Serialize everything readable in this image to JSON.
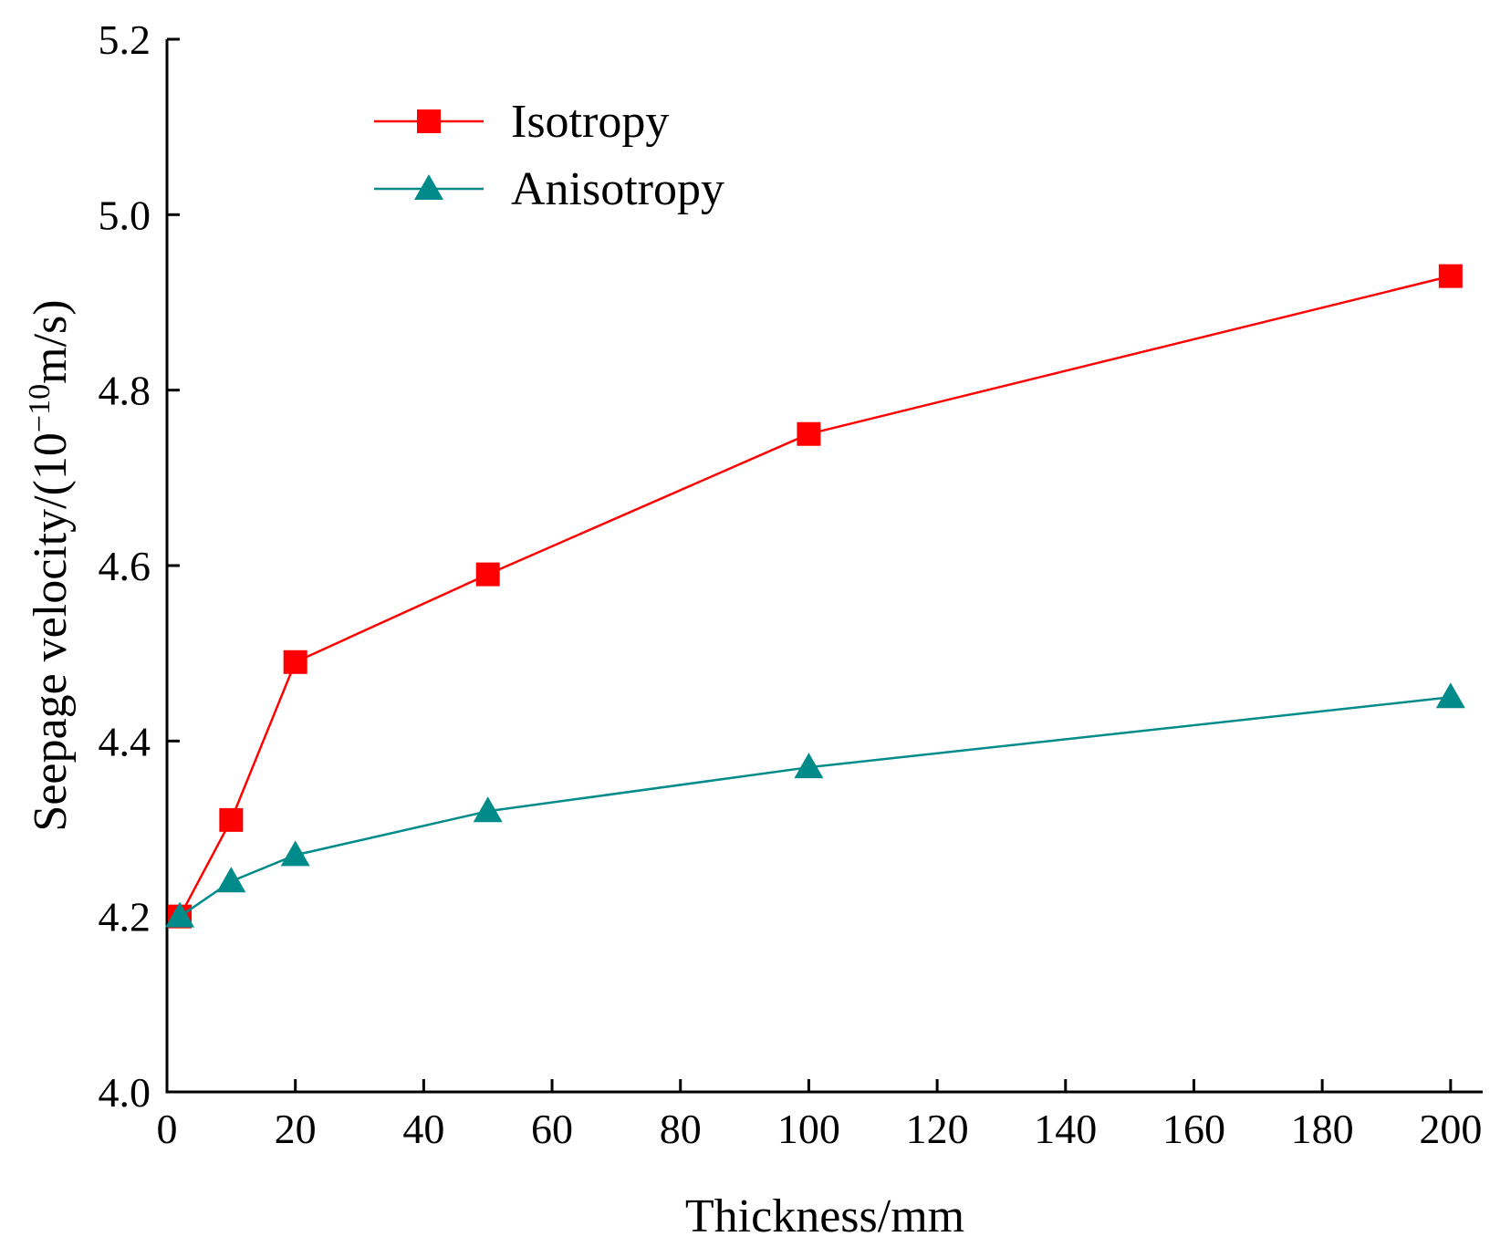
{
  "chart_data": {
    "type": "line",
    "title": "",
    "xlabel": "Thickness/mm",
    "ylabel": {
      "prefix": "Seepage velocity/(10",
      "exponent": "−10",
      "suffix": "m/s)"
    },
    "xlim": [
      0,
      205
    ],
    "ylim": [
      4.0,
      5.2
    ],
    "x_ticks": [
      "0",
      "20",
      "40",
      "60",
      "80",
      "100",
      "120",
      "140",
      "160",
      "180",
      "200"
    ],
    "y_ticks": [
      "4.0",
      "4.2",
      "4.4",
      "4.6",
      "4.8",
      "5.0",
      "5.2"
    ],
    "grid": false,
    "legend_position": "top-left",
    "series": [
      {
        "name": "Isotropy",
        "color": "#ff0000",
        "marker": "square",
        "x": [
          2,
          10,
          20,
          50,
          100,
          200
        ],
        "y": [
          4.2,
          4.31,
          4.49,
          4.59,
          4.75,
          4.93
        ]
      },
      {
        "name": "Anisotropy",
        "color": "#008b8b",
        "marker": "triangle",
        "x": [
          2,
          10,
          20,
          50,
          100,
          200
        ],
        "y": [
          4.2,
          4.24,
          4.27,
          4.32,
          4.37,
          4.45
        ]
      }
    ]
  }
}
